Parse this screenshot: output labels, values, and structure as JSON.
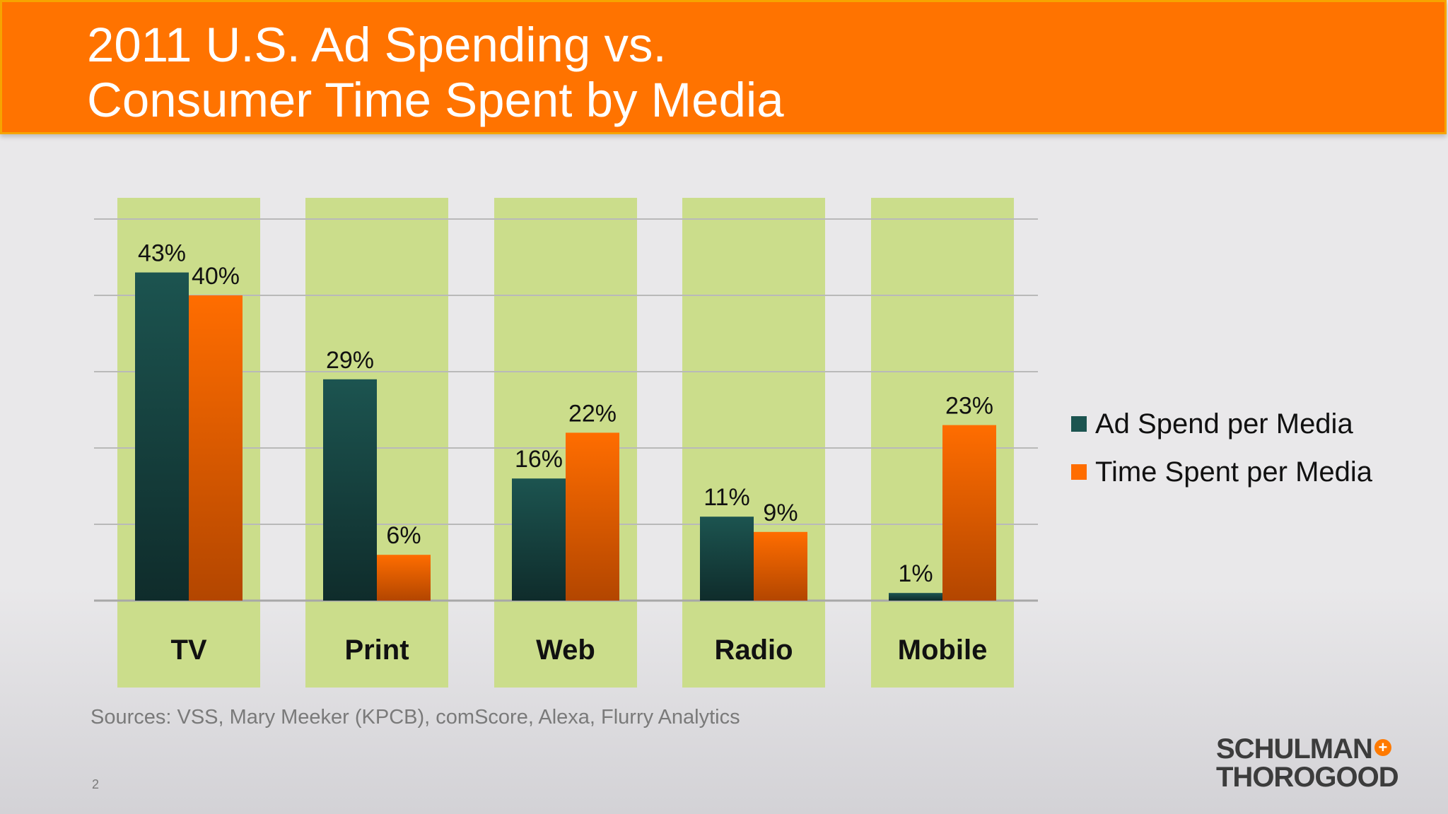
{
  "slide": {
    "title": "2011 U.S. Ad Spending vs.\nConsumer Time Spent by Media",
    "sources": "Sources: VSS, Mary Meeker (KPCB), comScore, Alexa, Flurry Analytics",
    "page_number": "2",
    "logo_line1": "SCHULMAN",
    "logo_plus": "+",
    "logo_line2": "THOROGOOD"
  },
  "colors": {
    "header_bg": "#ff7300",
    "column_bg": "#cbdd8b",
    "series_ad": "#1c5450",
    "series_time": "#ff6d00"
  },
  "chart_data": {
    "type": "bar",
    "title": "2011 U.S. Ad Spending vs. Consumer Time Spent by Media",
    "xlabel": "",
    "ylabel": "",
    "ylim": [
      0,
      50
    ],
    "grid": true,
    "legend_position": "right",
    "categories": [
      "TV",
      "Print",
      "Web",
      "Radio",
      "Mobile"
    ],
    "series": [
      {
        "name": "Ad Spend per Media",
        "values": [
          43,
          29,
          16,
          11,
          1
        ],
        "labels": [
          "43%",
          "29%",
          "16%",
          "11%",
          "1%"
        ]
      },
      {
        "name": "Time Spent per Media",
        "values": [
          40,
          6,
          22,
          9,
          23
        ],
        "labels": [
          "40%",
          "6%",
          "22%",
          "9%",
          "23%"
        ]
      }
    ]
  }
}
